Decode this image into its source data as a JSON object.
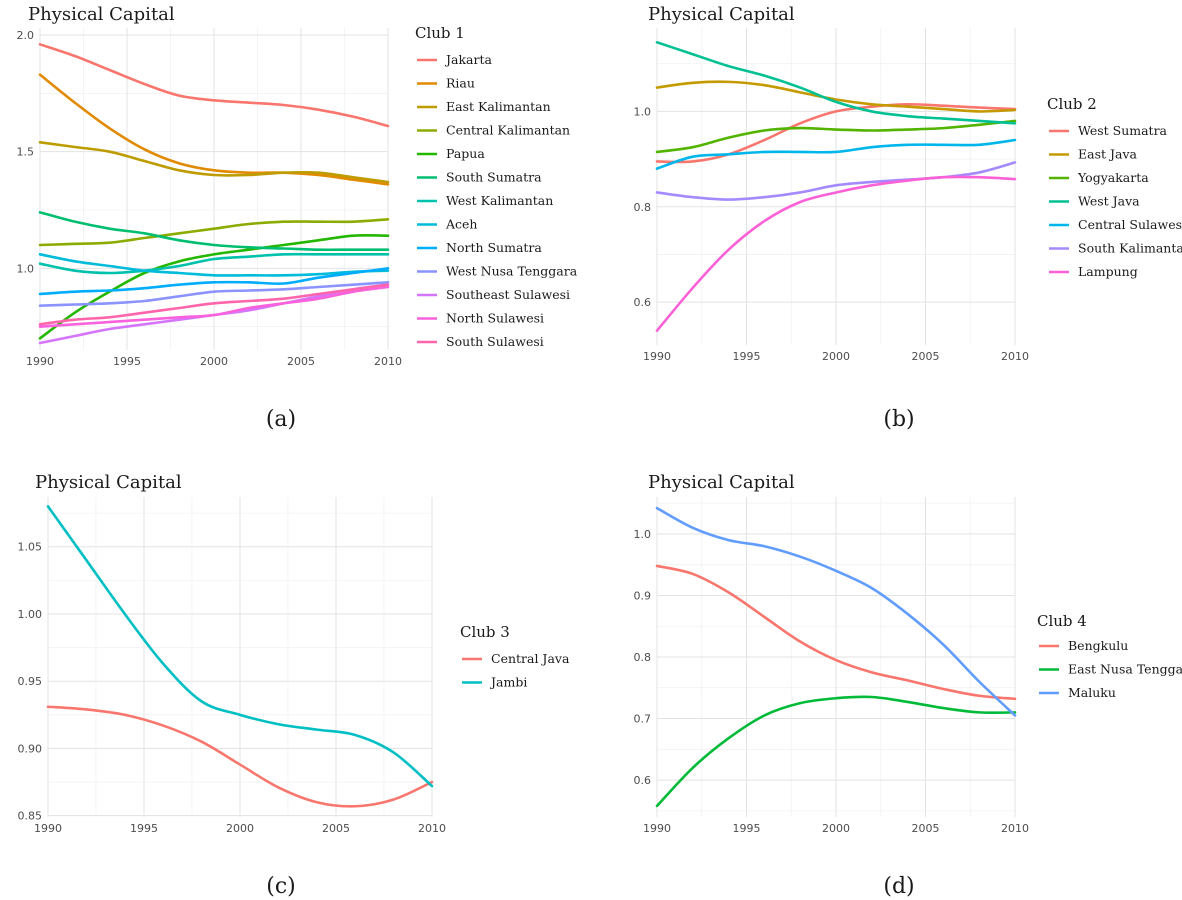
{
  "chart_data": [
    {
      "type": "line",
      "panel": "(a)",
      "title": "Physical Capital",
      "legend_title": "Club 1",
      "legend_position": "right",
      "xlabel": "",
      "ylabel": "",
      "xlim": [
        1990,
        2010
      ],
      "ylim": [
        0.65,
        2.03
      ],
      "x_ticks": [
        1990,
        1995,
        2000,
        2005,
        2010
      ],
      "y_ticks": [
        1.0,
        1.5,
        2.0
      ],
      "y_tick_labels": [
        "1.0",
        "1.5",
        "2.0"
      ],
      "grid": true,
      "x": [
        1990,
        1992,
        1994,
        1996,
        1998,
        2000,
        2002,
        2004,
        2006,
        2008,
        2010
      ],
      "series": [
        {
          "name": "Jakarta",
          "color": "#F8766D",
          "values": [
            1.96,
            1.91,
            1.85,
            1.79,
            1.74,
            1.72,
            1.71,
            1.7,
            1.68,
            1.65,
            1.61
          ]
        },
        {
          "name": "Riau",
          "color": "#E18A00",
          "values": [
            1.83,
            1.71,
            1.6,
            1.51,
            1.45,
            1.42,
            1.41,
            1.41,
            1.4,
            1.38,
            1.36
          ]
        },
        {
          "name": "East Kalimantan",
          "color": "#BE9C00",
          "values": [
            1.54,
            1.52,
            1.5,
            1.46,
            1.42,
            1.4,
            1.4,
            1.41,
            1.41,
            1.39,
            1.37
          ]
        },
        {
          "name": "Central Kalimantan",
          "color": "#8CAB00",
          "values": [
            1.1,
            1.105,
            1.11,
            1.13,
            1.15,
            1.17,
            1.19,
            1.2,
            1.2,
            1.2,
            1.21
          ]
        },
        {
          "name": "Papua",
          "color": "#24B700",
          "values": [
            0.7,
            0.81,
            0.9,
            0.98,
            1.03,
            1.06,
            1.08,
            1.1,
            1.12,
            1.14,
            1.14
          ]
        },
        {
          "name": "South Sumatra",
          "color": "#00BE70",
          "values": [
            1.24,
            1.2,
            1.17,
            1.15,
            1.12,
            1.1,
            1.09,
            1.085,
            1.08,
            1.08,
            1.08
          ]
        },
        {
          "name": "West Kalimantan",
          "color": "#00C1AB",
          "values": [
            1.02,
            0.99,
            0.98,
            0.99,
            1.01,
            1.04,
            1.05,
            1.06,
            1.06,
            1.06,
            1.06
          ]
        },
        {
          "name": "Aceh",
          "color": "#00BBDA",
          "values": [
            1.06,
            1.03,
            1.01,
            0.99,
            0.98,
            0.97,
            0.97,
            0.97,
            0.975,
            0.985,
            0.99
          ]
        },
        {
          "name": "North Sumatra",
          "color": "#00ACFC",
          "values": [
            0.89,
            0.9,
            0.905,
            0.915,
            0.93,
            0.94,
            0.94,
            0.935,
            0.96,
            0.98,
            1.0
          ]
        },
        {
          "name": "West Nusa Tenggara",
          "color": "#8B93FF",
          "values": [
            0.84,
            0.845,
            0.85,
            0.86,
            0.88,
            0.9,
            0.905,
            0.91,
            0.92,
            0.93,
            0.94
          ]
        },
        {
          "name": "Southeast Sulawesi",
          "color": "#D575FE",
          "values": [
            0.68,
            0.71,
            0.74,
            0.76,
            0.78,
            0.8,
            0.82,
            0.85,
            0.88,
            0.91,
            0.93
          ]
        },
        {
          "name": "North Sulawesi",
          "color": "#F962DD",
          "values": [
            0.75,
            0.76,
            0.77,
            0.78,
            0.79,
            0.8,
            0.83,
            0.85,
            0.87,
            0.9,
            0.92
          ]
        },
        {
          "name": "South Sulawesi",
          "color": "#FF65AC",
          "values": [
            0.76,
            0.78,
            0.79,
            0.81,
            0.83,
            0.85,
            0.86,
            0.87,
            0.89,
            0.91,
            0.93
          ]
        }
      ]
    },
    {
      "type": "line",
      "panel": "(b)",
      "title": "Physical Capital",
      "legend_title": "Club 2",
      "legend_position": "right",
      "xlabel": "",
      "ylabel": "",
      "xlim": [
        1990,
        2010
      ],
      "ylim": [
        0.51,
        1.175
      ],
      "x_ticks": [
        1990,
        1995,
        2000,
        2005,
        2010
      ],
      "y_ticks": [
        0.6,
        0.8,
        1.0
      ],
      "y_tick_labels": [
        "0.6",
        "0.8",
        "1.0"
      ],
      "grid": true,
      "x": [
        1990,
        1992,
        1994,
        1996,
        1998,
        2000,
        2002,
        2004,
        2006,
        2008,
        2010
      ],
      "series": [
        {
          "name": "West Sumatra",
          "color": "#F8766D",
          "values": [
            0.895,
            0.895,
            0.91,
            0.94,
            0.975,
            1.0,
            1.01,
            1.015,
            1.012,
            1.008,
            1.005
          ]
        },
        {
          "name": "East Java",
          "color": "#C49A00",
          "values": [
            1.05,
            1.06,
            1.062,
            1.055,
            1.04,
            1.025,
            1.015,
            1.01,
            1.005,
            1.0,
            1.003
          ]
        },
        {
          "name": "Yogyakarta",
          "color": "#53B400",
          "values": [
            0.915,
            0.925,
            0.945,
            0.96,
            0.965,
            0.962,
            0.96,
            0.962,
            0.965,
            0.972,
            0.98
          ]
        },
        {
          "name": "West Java",
          "color": "#00C094",
          "values": [
            1.145,
            1.12,
            1.095,
            1.075,
            1.05,
            1.02,
            1.0,
            0.99,
            0.985,
            0.98,
            0.975
          ]
        },
        {
          "name": "Central Sulawesi",
          "color": "#00B6EB",
          "values": [
            0.88,
            0.905,
            0.91,
            0.915,
            0.915,
            0.915,
            0.925,
            0.93,
            0.93,
            0.93,
            0.94
          ]
        },
        {
          "name": "South Kalimantan",
          "color": "#A58AFF",
          "values": [
            0.83,
            0.82,
            0.815,
            0.82,
            0.83,
            0.845,
            0.852,
            0.857,
            0.862,
            0.872,
            0.893
          ]
        },
        {
          "name": "Lampung",
          "color": "#FB61D7",
          "values": [
            0.54,
            0.63,
            0.71,
            0.77,
            0.81,
            0.83,
            0.845,
            0.855,
            0.862,
            0.862,
            0.858
          ]
        }
      ]
    },
    {
      "type": "line",
      "panel": "(c)",
      "title": "Physical Capital",
      "legend_title": "Club 3",
      "legend_position": "right",
      "xlabel": "",
      "ylabel": "",
      "xlim": [
        1990,
        2010
      ],
      "ylim": [
        0.849,
        1.087
      ],
      "x_ticks": [
        1990,
        1995,
        2000,
        2005,
        2010
      ],
      "y_ticks": [
        0.85,
        0.9,
        0.95,
        1.0,
        1.05
      ],
      "y_tick_labels": [
        "0.85",
        "0.90",
        "0.95",
        "1.00",
        "1.05"
      ],
      "grid": true,
      "x": [
        1990,
        1992,
        1994,
        1996,
        1998,
        2000,
        2002,
        2004,
        2006,
        2008,
        2010
      ],
      "series": [
        {
          "name": "Central Java",
          "color": "#F8766D",
          "values": [
            0.931,
            0.929,
            0.925,
            0.917,
            0.905,
            0.888,
            0.871,
            0.86,
            0.857,
            0.862,
            0.875
          ]
        },
        {
          "name": "Jambi",
          "color": "#00BFC4",
          "values": [
            1.08,
            1.04,
            1.0,
            0.963,
            0.935,
            0.925,
            0.918,
            0.914,
            0.91,
            0.897,
            0.872
          ]
        }
      ]
    },
    {
      "type": "line",
      "panel": "(d)",
      "title": "Physical Capital",
      "legend_title": "Club 4",
      "legend_position": "right",
      "xlabel": "",
      "ylabel": "",
      "xlim": [
        1990,
        2010
      ],
      "ylim": [
        0.54,
        1.06
      ],
      "x_ticks": [
        1990,
        1995,
        2000,
        2005,
        2010
      ],
      "y_ticks": [
        0.6,
        0.7,
        0.8,
        0.9,
        1.0
      ],
      "y_tick_labels": [
        "0.6",
        "0.7",
        "0.8",
        "0.9",
        "1.0"
      ],
      "grid": true,
      "x": [
        1990,
        1992,
        1994,
        1996,
        1998,
        2000,
        2002,
        2004,
        2006,
        2008,
        2010
      ],
      "series": [
        {
          "name": "Bengkulu",
          "color": "#F8766D",
          "values": [
            0.948,
            0.935,
            0.905,
            0.865,
            0.825,
            0.795,
            0.775,
            0.762,
            0.748,
            0.737,
            0.732
          ]
        },
        {
          "name": "East Nusa Tenggara",
          "color": "#00BA38",
          "values": [
            0.558,
            0.62,
            0.668,
            0.705,
            0.725,
            0.733,
            0.735,
            0.727,
            0.717,
            0.71,
            0.71
          ]
        },
        {
          "name": "Maluku",
          "color": "#619CFF",
          "values": [
            1.042,
            1.01,
            0.99,
            0.98,
            0.963,
            0.94,
            0.912,
            0.87,
            0.82,
            0.76,
            0.705
          ]
        }
      ]
    }
  ],
  "captions": [
    "(a)",
    "(b)",
    "(c)",
    "(d)"
  ]
}
